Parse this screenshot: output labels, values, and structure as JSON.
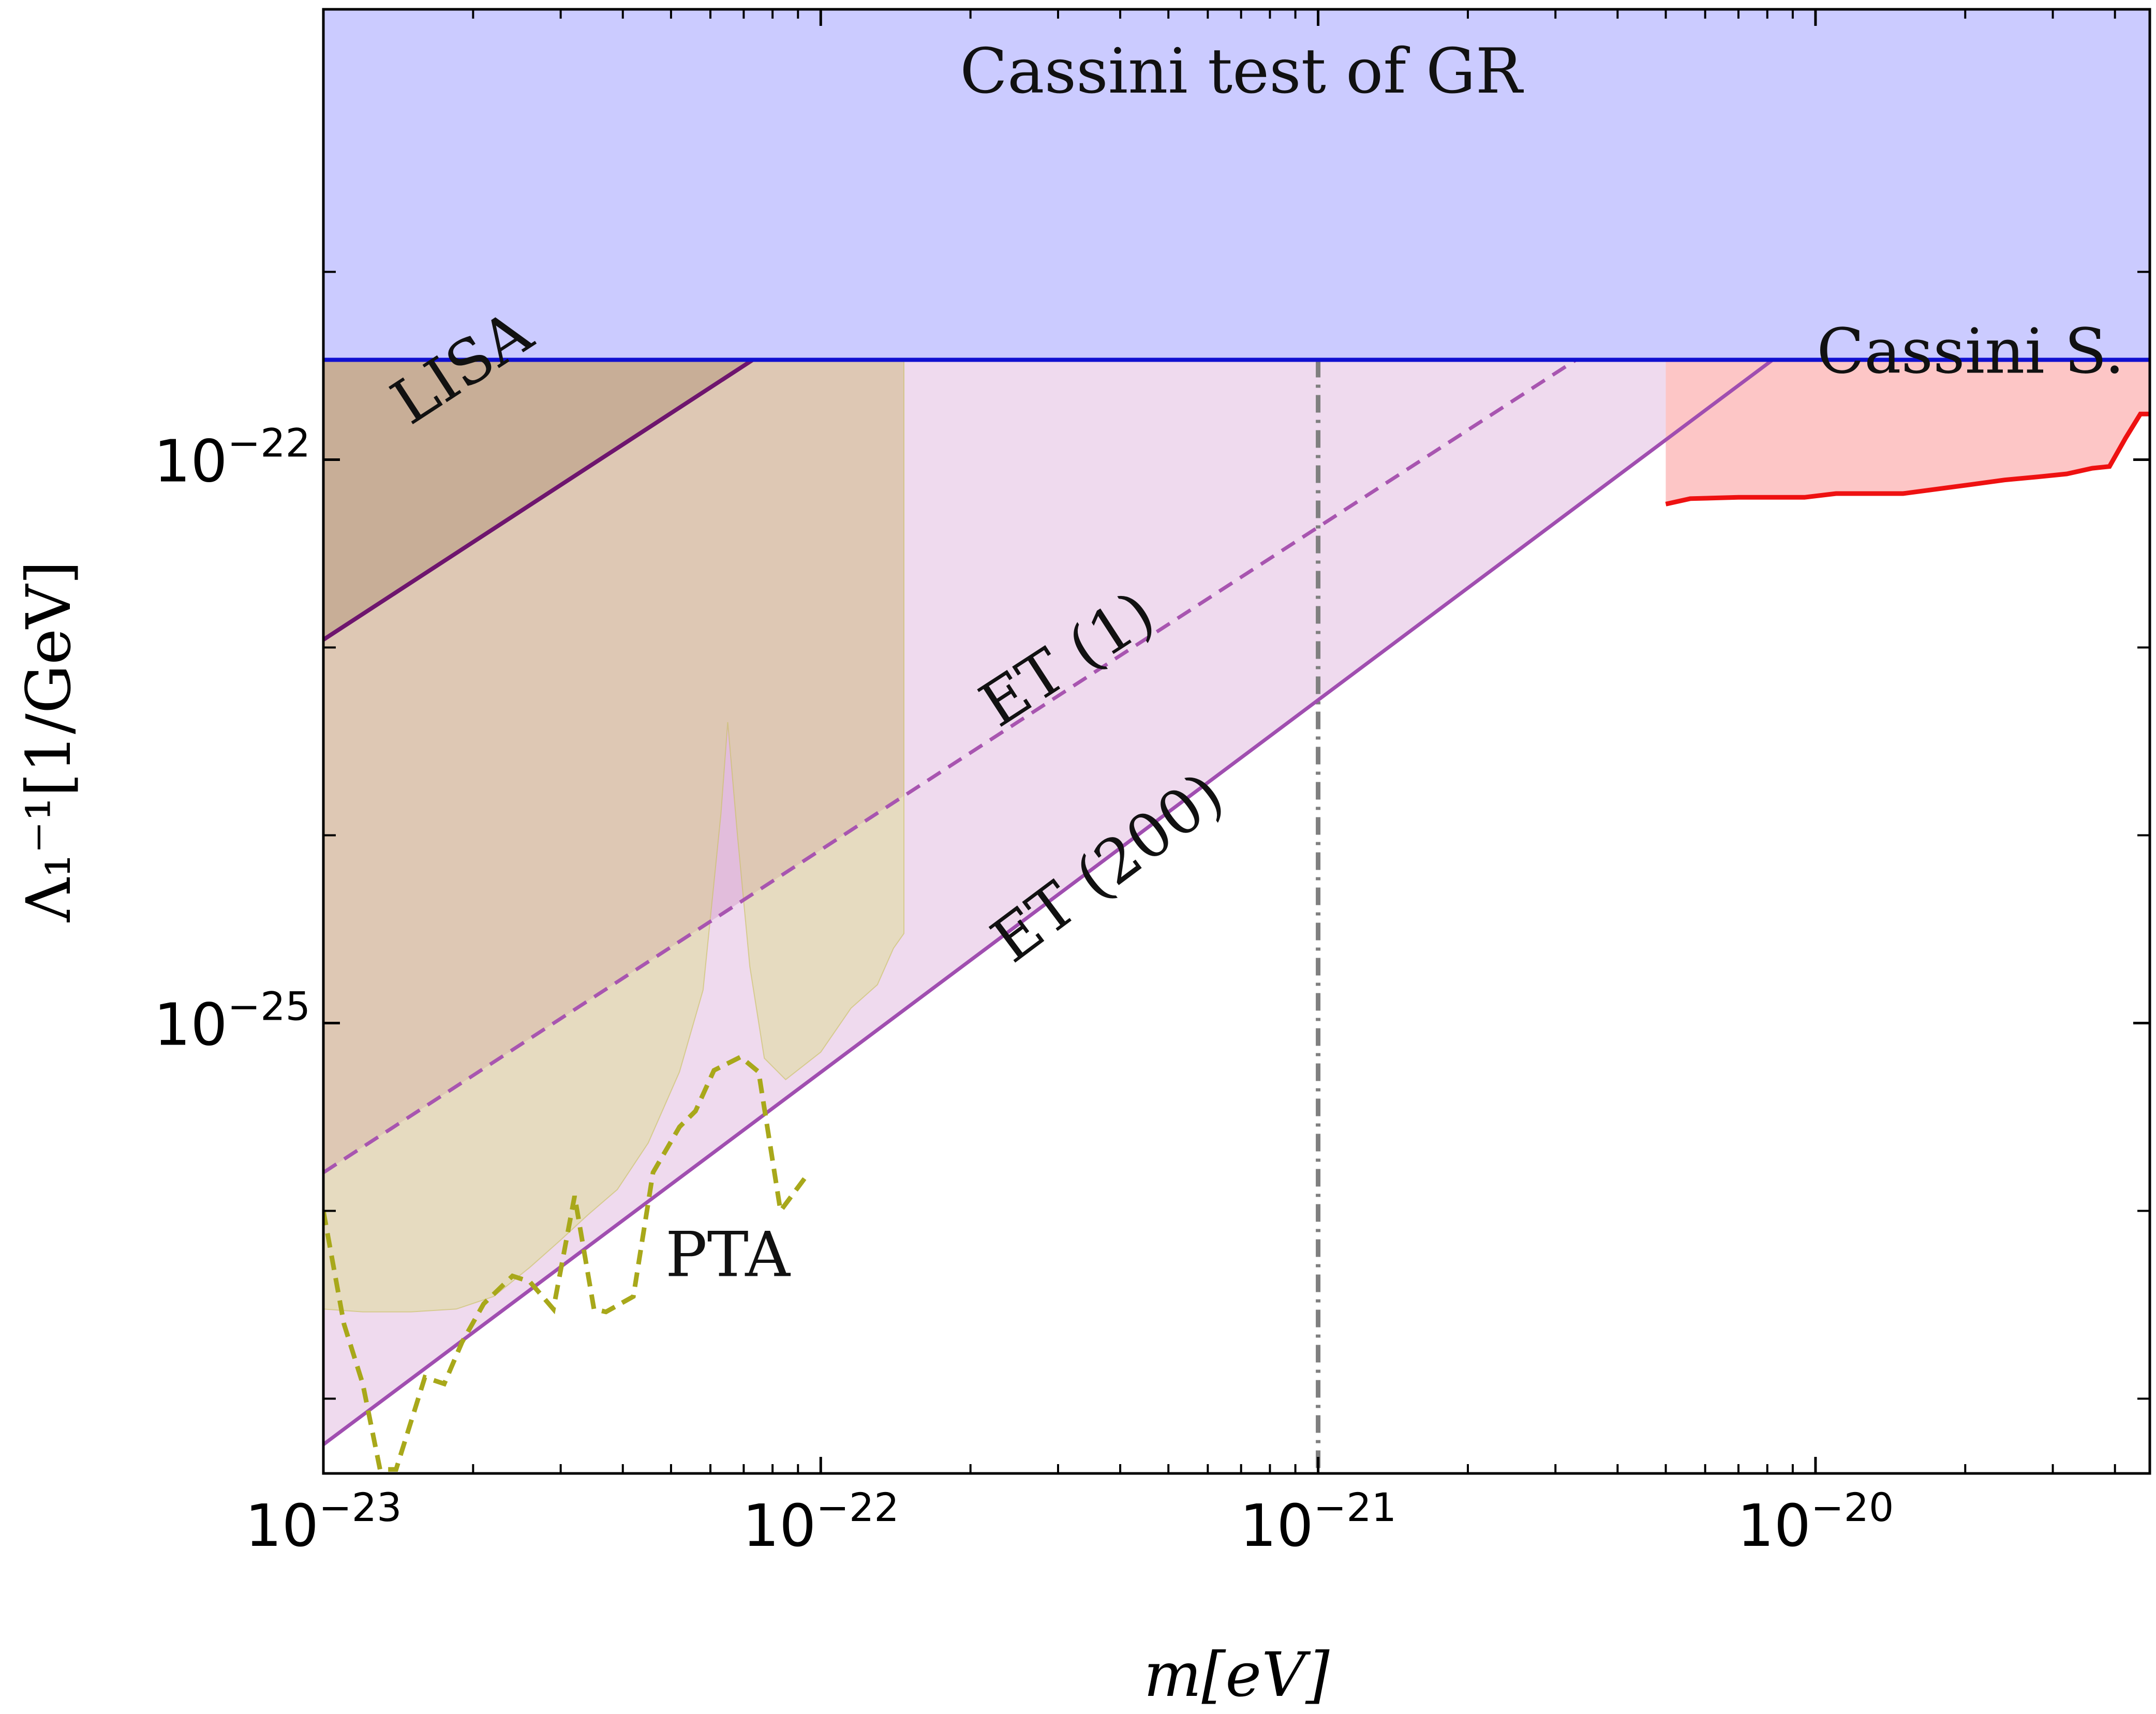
{
  "chart_data": {
    "type": "area",
    "xscale": "log",
    "yscale": "log",
    "xlim": [
      1e-23,
      4.7e-20
    ],
    "ylim": [
      4e-28,
      2.5e-20
    ],
    "xlabel": "m[eV]",
    "ylabel": "Λ₁⁻¹[1/GeV]",
    "x_ticks": [
      {
        "value": 1e-23,
        "mantissa": "10",
        "exponent": "−23"
      },
      {
        "value": 1e-22,
        "mantissa": "10",
        "exponent": "−22"
      },
      {
        "value": 1e-21,
        "mantissa": "10",
        "exponent": "−21"
      },
      {
        "value": 1e-20,
        "mantissa": "10",
        "exponent": "−20"
      }
    ],
    "y_ticks": [
      {
        "value": 1e-22,
        "mantissa": "10",
        "exponent": "−22"
      },
      {
        "value": 1e-25,
        "mantissa": "10",
        "exponent": "−25"
      }
    ],
    "y_minor_ticks": [
      1e-21,
      1e-23,
      1e-24,
      1e-26,
      1e-27
    ],
    "reference_line_x": 1e-21,
    "colors": {
      "cassini_gr": "#cbcbff",
      "cassini_gr_line": "#1010d0",
      "lisa_fill": "#c196b0",
      "lisa_line": "#6e156e",
      "et1_fill": "#e2bddc",
      "et1_line": "#a855b0",
      "et200_fill": "#efdaee",
      "et200_line": "#a04eb0",
      "pta_fill": "#e8e8b8",
      "pta_line": "#a8a81a",
      "cassini_s_fill": "#fdc6c6",
      "cassini_s_line": "#ee1111",
      "vline": "#7f7f7f"
    },
    "series": [
      {
        "name": "Cassini test of GR",
        "kind": "band_above",
        "y": 3.4e-22
      },
      {
        "name": "LISA",
        "kind": "line_band",
        "points": [
          [
            1e-23,
            1.1e-23
          ],
          [
            7.3e-23,
            3.4e-22
          ]
        ],
        "fill_x_max": 7.3e-23
      },
      {
        "name": "ET (1)",
        "kind": "line_band",
        "style": "dashed",
        "points": [
          [
            1e-23,
            1.6e-26
          ],
          [
            3.3e-21,
            3.4e-22
          ]
        ],
        "fill_x_max": 1.47e-22
      },
      {
        "name": "ET (200)",
        "kind": "line_band",
        "points": [
          [
            1e-23,
            5.7e-28
          ],
          [
            8.2e-21,
            3.4e-22
          ]
        ],
        "fill_x_max": 5e-21
      },
      {
        "name": "PTA",
        "kind": "region",
        "fill_boundary": [
          [
            1e-23,
            3e-27
          ],
          [
            1.2e-23,
            2.9e-27
          ],
          [
            1.5e-23,
            2.9e-27
          ],
          [
            1.85e-23,
            3e-27
          ],
          [
            2.2e-23,
            3.5e-27
          ],
          [
            2.6e-23,
            5e-27
          ],
          [
            3e-23,
            7e-27
          ],
          [
            3.4e-23,
            9.5e-27
          ],
          [
            3.9e-23,
            1.3e-26
          ],
          [
            4.5e-23,
            2.3e-26
          ],
          [
            5.2e-23,
            5.5e-26
          ],
          [
            5.8e-23,
            1.5e-25
          ],
          [
            6.3e-23,
            1.3e-24
          ],
          [
            6.5e-23,
            4e-24
          ],
          [
            6.8e-23,
            1e-24
          ],
          [
            7.2e-23,
            2e-25
          ],
          [
            7.7e-23,
            6.5e-26
          ],
          [
            8.5e-23,
            5e-26
          ],
          [
            1e-22,
            7e-26
          ],
          [
            1.15e-22,
            1.2e-25
          ],
          [
            1.3e-22,
            1.6e-25
          ],
          [
            1.4e-22,
            2.5e-25
          ],
          [
            1.47e-22,
            3e-25
          ]
        ],
        "sensitivity_curve": [
          [
            1e-23,
            1e-26
          ],
          [
            1.1e-23,
            2.5e-27
          ],
          [
            1.2e-23,
            1.2e-27
          ],
          [
            1.3e-23,
            4.2e-28
          ],
          [
            1.4e-23,
            4.2e-28
          ],
          [
            1.6e-23,
            1.3e-27
          ],
          [
            1.75e-23,
            1.2e-27
          ],
          [
            1.9e-23,
            2e-27
          ],
          [
            2.1e-23,
            3.2e-27
          ],
          [
            2.4e-23,
            4.5e-27
          ],
          [
            2.6e-23,
            4.2e-27
          ],
          [
            2.9e-23,
            3e-27
          ],
          [
            3.2e-23,
            1.2e-26
          ],
          [
            3.5e-23,
            3e-27
          ],
          [
            3.7e-23,
            2.9e-27
          ],
          [
            4.2e-23,
            3.5e-27
          ],
          [
            4.6e-23,
            1.6e-26
          ],
          [
            5.2e-23,
            2.8e-26
          ],
          [
            5.6e-23,
            3.4e-26
          ],
          [
            6.1e-23,
            5.6e-26
          ],
          [
            6.9e-23,
            6.6e-26
          ],
          [
            7.5e-23,
            5.5e-26
          ],
          [
            8.3e-23,
            1e-26
          ],
          [
            9.3e-23,
            1.5e-26
          ]
        ]
      },
      {
        "name": "Cassini S.",
        "kind": "region_above",
        "fill_x_min": 5e-21,
        "curve": [
          [
            5e-21,
            5.8e-23
          ],
          [
            5.6e-21,
            6.2e-23
          ],
          [
            7e-21,
            6.3e-23
          ],
          [
            9.5e-21,
            6.3e-23
          ],
          [
            1.1e-20,
            6.6e-23
          ],
          [
            1.5e-20,
            6.6e-23
          ],
          [
            2e-20,
            7.3e-23
          ],
          [
            2.4e-20,
            7.8e-23
          ],
          [
            2.8e-20,
            8.1e-23
          ],
          [
            3.2e-20,
            8.4e-23
          ],
          [
            3.6e-20,
            9e-23
          ],
          [
            3.9e-20,
            9.2e-23
          ],
          [
            4.2e-20,
            1.3e-22
          ],
          [
            4.5e-20,
            1.75e-22
          ],
          [
            4.7e-20,
            1.75e-22
          ]
        ]
      }
    ],
    "annotations": [
      {
        "text": "Cassini test of GR",
        "x": 7e-22,
        "y": 9e-21,
        "rotate": false
      },
      {
        "text": "LISA",
        "x": 2e-23,
        "y": 2.5e-22,
        "rotate": true
      },
      {
        "text": "ET (1)",
        "x": 3.3e-22,
        "y": 7e-24,
        "rotate": true
      },
      {
        "text": "ET (200)",
        "x": 4e-22,
        "y": 5.5e-25,
        "rotate": true
      },
      {
        "text": "PTA",
        "x": 6.5e-23,
        "y": 4.5e-27,
        "rotate": false
      },
      {
        "text": "Cassini S.",
        "x": 2.05e-20,
        "y": 2.9e-22,
        "rotate": false
      }
    ]
  }
}
